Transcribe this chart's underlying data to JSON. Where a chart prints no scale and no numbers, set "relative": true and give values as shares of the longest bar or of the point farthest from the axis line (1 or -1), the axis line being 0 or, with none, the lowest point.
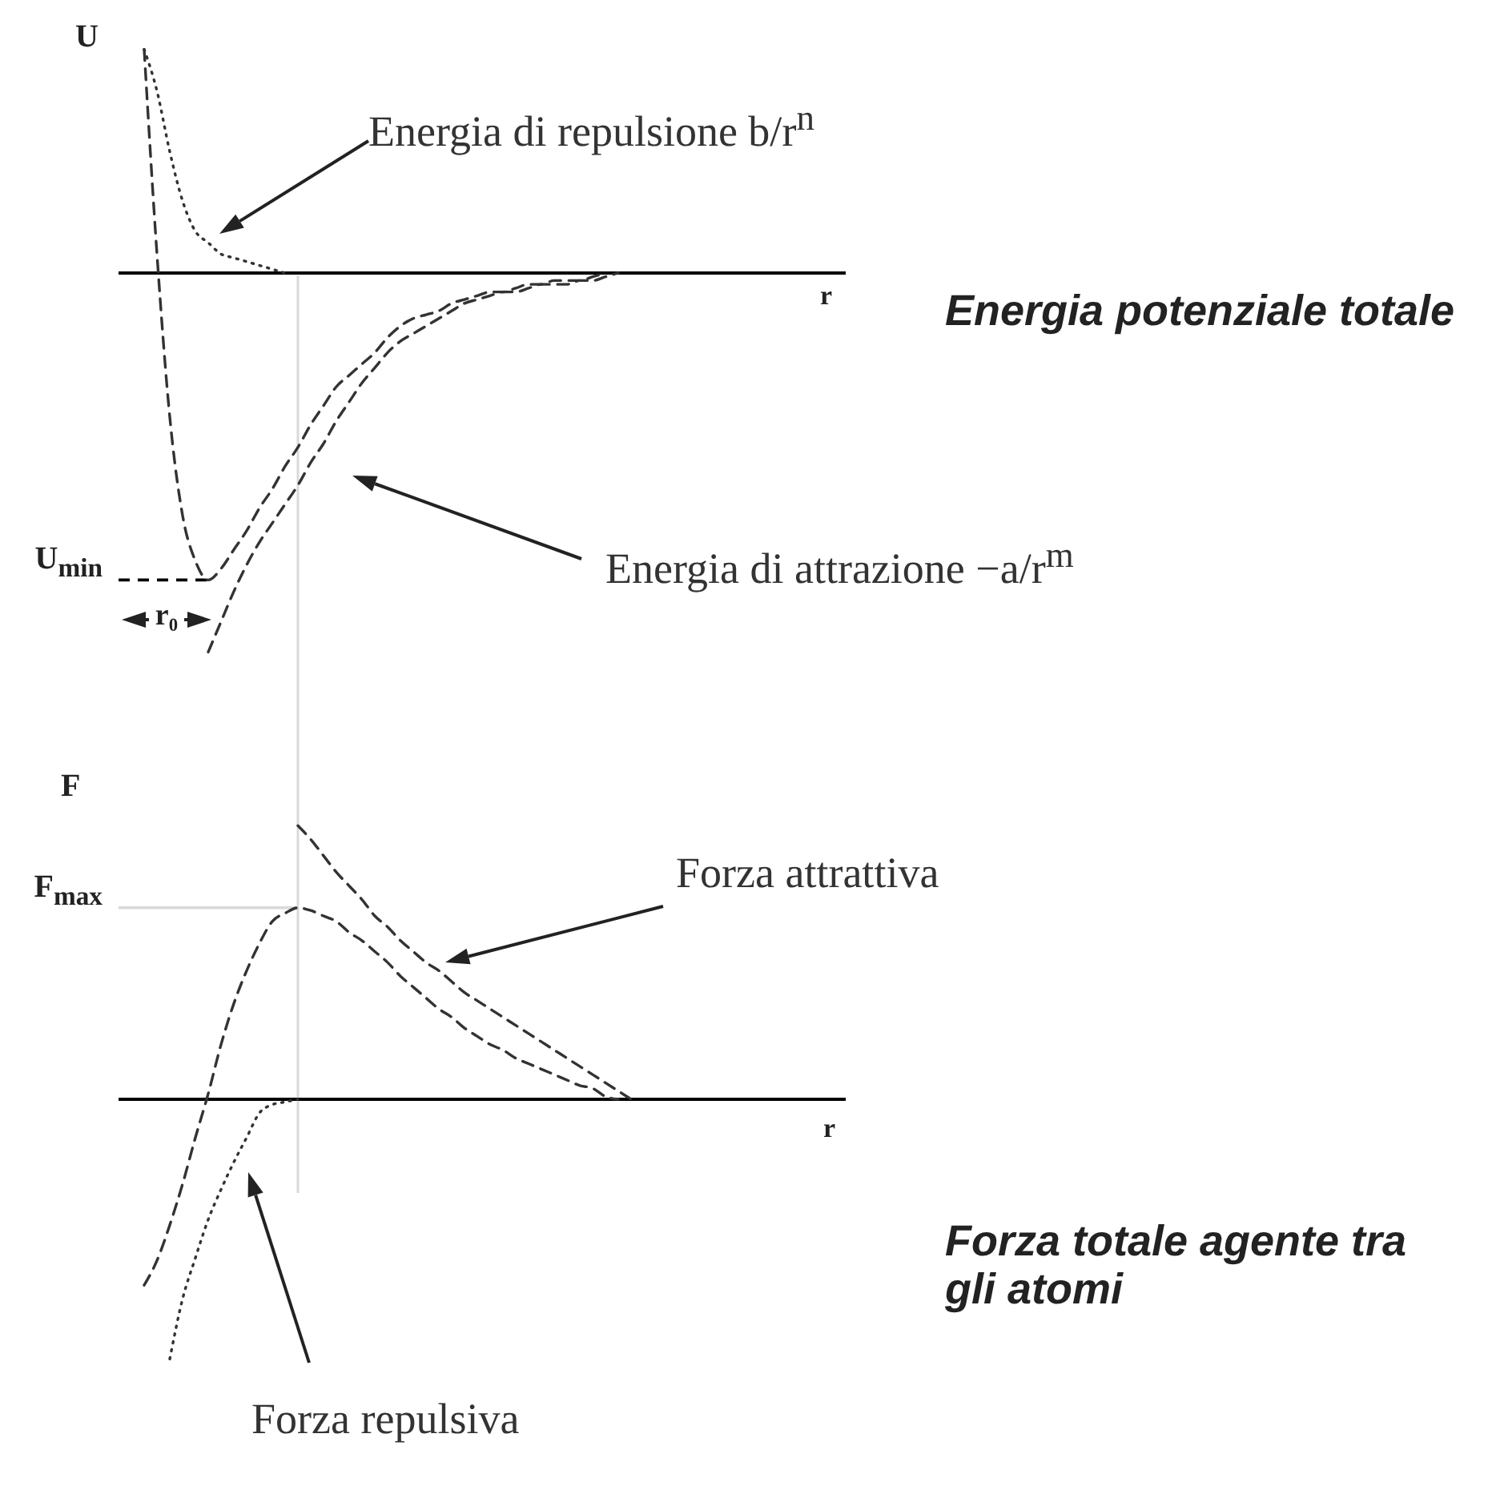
{
  "chart_data": [
    {
      "type": "line",
      "xlabel": "r",
      "ylabel": "U",
      "relative": true,
      "categories": [
        null,
        null,
        null,
        null,
        null,
        null,
        null,
        null,
        null,
        null,
        null,
        null,
        null,
        null,
        null,
        null,
        null,
        null,
        null,
        null,
        null,
        null,
        null,
        null,
        null,
        null,
        null,
        null,
        null,
        null,
        null,
        null,
        null,
        null,
        null,
        null,
        null,
        null,
        null,
        null,
        null,
        null,
        null,
        null,
        null,
        null,
        null,
        null,
        null,
        null,
        null,
        null,
        null,
        null,
        null,
        null,
        null
      ],
      "series": [
        {
          "name": "Energia di repulsione b/r$^{n}$",
          "color": "#333333",
          "line_style": "dotted",
          "values": [
            null,
            null,
            0.59,
            0.48,
            0.32,
            0.19,
            0.11,
            0.08,
            0.05,
            0.04,
            0.03,
            0.02,
            0.01,
            0,
            null,
            null,
            null,
            null,
            null,
            null,
            null,
            null,
            null,
            null,
            null,
            null,
            null,
            null,
            null,
            null,
            null,
            null,
            null,
            null,
            null,
            null,
            null,
            null,
            null,
            null,
            null,
            null,
            null,
            null,
            null,
            null,
            null,
            null,
            null,
            null,
            null,
            null,
            null,
            null,
            null,
            null,
            null
          ]
        },
        {
          "name": "Energia potenziale totale",
          "color": "#333333",
          "line_style": "dashed",
          "values": [
            null,
            null,
            0.59,
            0.05,
            -0.38,
            -0.64,
            -0.76,
            -0.81,
            -0.78,
            -0.73,
            -0.68,
            -0.62,
            -0.57,
            -0.51,
            -0.46,
            -0.4,
            -0.35,
            -0.3,
            -0.27,
            -0.24,
            -0.21,
            -0.17,
            -0.14,
            -0.12,
            -0.11,
            -0.1,
            -0.08,
            -0.07,
            -0.06,
            -0.05,
            -0.05,
            -0.04,
            -0.03,
            -0.03,
            -0.02,
            -0.02,
            -0.02,
            -0.01,
            0,
            null,
            null,
            null,
            null,
            null,
            null,
            null,
            null,
            null,
            null,
            null,
            null,
            null,
            null,
            null,
            null,
            null,
            null
          ]
        },
        {
          "name": "Energia di attrazione −a/r$^{m}$",
          "color": "#333333",
          "line_style": "dashed",
          "values": [
            null,
            null,
            null,
            null,
            null,
            null,
            null,
            -1,
            -0.92,
            -0.84,
            -0.77,
            -0.71,
            -0.66,
            -0.61,
            -0.56,
            -0.5,
            -0.45,
            -0.39,
            -0.34,
            -0.29,
            -0.25,
            -0.21,
            -0.18,
            -0.16,
            -0.14,
            -0.12,
            -0.1,
            -0.08,
            -0.07,
            -0.06,
            -0.05,
            -0.05,
            -0.04,
            -0.03,
            -0.03,
            -0.03,
            -0.02,
            -0.02,
            -0.01,
            0,
            null,
            null,
            null,
            null,
            null,
            null,
            null,
            null,
            null,
            null,
            null,
            null,
            null,
            null,
            null,
            null,
            null
          ]
        }
      ],
      "ref_lines": [
        {
          "axis": "y",
          "value": -0.81,
          "label": "U$_{min}$",
          "color": "#000000",
          "line_style": "dashed"
        }
      ],
      "annotations": [
        "r₀"
      ]
    },
    {
      "type": "line",
      "xlabel": "r",
      "ylabel": "F",
      "relative": true,
      "categories": [
        null,
        null,
        null,
        null,
        null,
        null,
        null,
        null,
        null,
        null,
        null,
        null,
        null,
        null,
        null,
        null,
        null,
        null,
        null,
        null,
        null,
        null,
        null,
        null,
        null,
        null,
        null,
        null,
        null,
        null,
        null,
        null,
        null,
        null,
        null,
        null,
        null,
        null,
        null,
        null,
        null,
        null,
        null,
        null,
        null,
        null,
        null,
        null,
        null,
        null,
        null,
        null,
        null,
        null,
        null,
        null,
        null
      ],
      "series": [
        {
          "color": "#333333",
          "line_style": "dashed",
          "values": [
            null,
            null,
            -0.68,
            -0.59,
            -0.46,
            -0.31,
            -0.14,
            0.02,
            0.2,
            0.35,
            0.47,
            0.57,
            0.65,
            0.68,
            0.7,
            0.69,
            0.67,
            0.65,
            0.61,
            0.58,
            0.54,
            0.5,
            0.45,
            0.41,
            0.37,
            0.33,
            0.3,
            0.26,
            0.23,
            0.2,
            0.18,
            0.15,
            0.13,
            0.11,
            0.09,
            0.07,
            0.05,
            0.04,
            0.01,
            0,
            null,
            null,
            null,
            null,
            null,
            null,
            null,
            null,
            null,
            null,
            null,
            null,
            null,
            null,
            null,
            null,
            null
          ]
        },
        {
          "name": "Forza attrattiva",
          "color": "#333333",
          "line_style": "dashed",
          "values": [
            null,
            null,
            null,
            null,
            null,
            null,
            null,
            null,
            null,
            null,
            null,
            null,
            null,
            null,
            1,
            0.95,
            0.89,
            0.83,
            0.78,
            0.73,
            0.67,
            0.63,
            0.58,
            0.54,
            0.5,
            0.47,
            0.43,
            0.39,
            0.36,
            0.33,
            0.3,
            0.27,
            0.24,
            0.21,
            0.18,
            0.15,
            0.12,
            0.09,
            0.06,
            0.03,
            0,
            null,
            null,
            null,
            null,
            null,
            null,
            null,
            null,
            null,
            null,
            null,
            null,
            null,
            null,
            null,
            null
          ]
        },
        {
          "name": "Forza repulsiva",
          "color": "#333333",
          "line_style": "dotted",
          "values": [
            null,
            null,
            null,
            null,
            -0.95,
            -0.73,
            -0.58,
            -0.44,
            -0.33,
            -0.23,
            -0.14,
            -0.05,
            -0.02,
            -0.01,
            0,
            null,
            null,
            null,
            null,
            null,
            null,
            null,
            null,
            null,
            null,
            null,
            null,
            null,
            null,
            null,
            null,
            null,
            null,
            null,
            null,
            null,
            null,
            null,
            null,
            null,
            null,
            null,
            null,
            null,
            null,
            null,
            null,
            null,
            null,
            null,
            null,
            null,
            null,
            null,
            null,
            null,
            null
          ]
        }
      ],
      "ref_lines": [
        {
          "axis": "y",
          "value": 0.7,
          "label": "F$_{max}$",
          "color": "#d9d9d9"
        }
      ],
      "annotations": [
        "Forza totale agente tra gli atomi"
      ]
    }
  ]
}
